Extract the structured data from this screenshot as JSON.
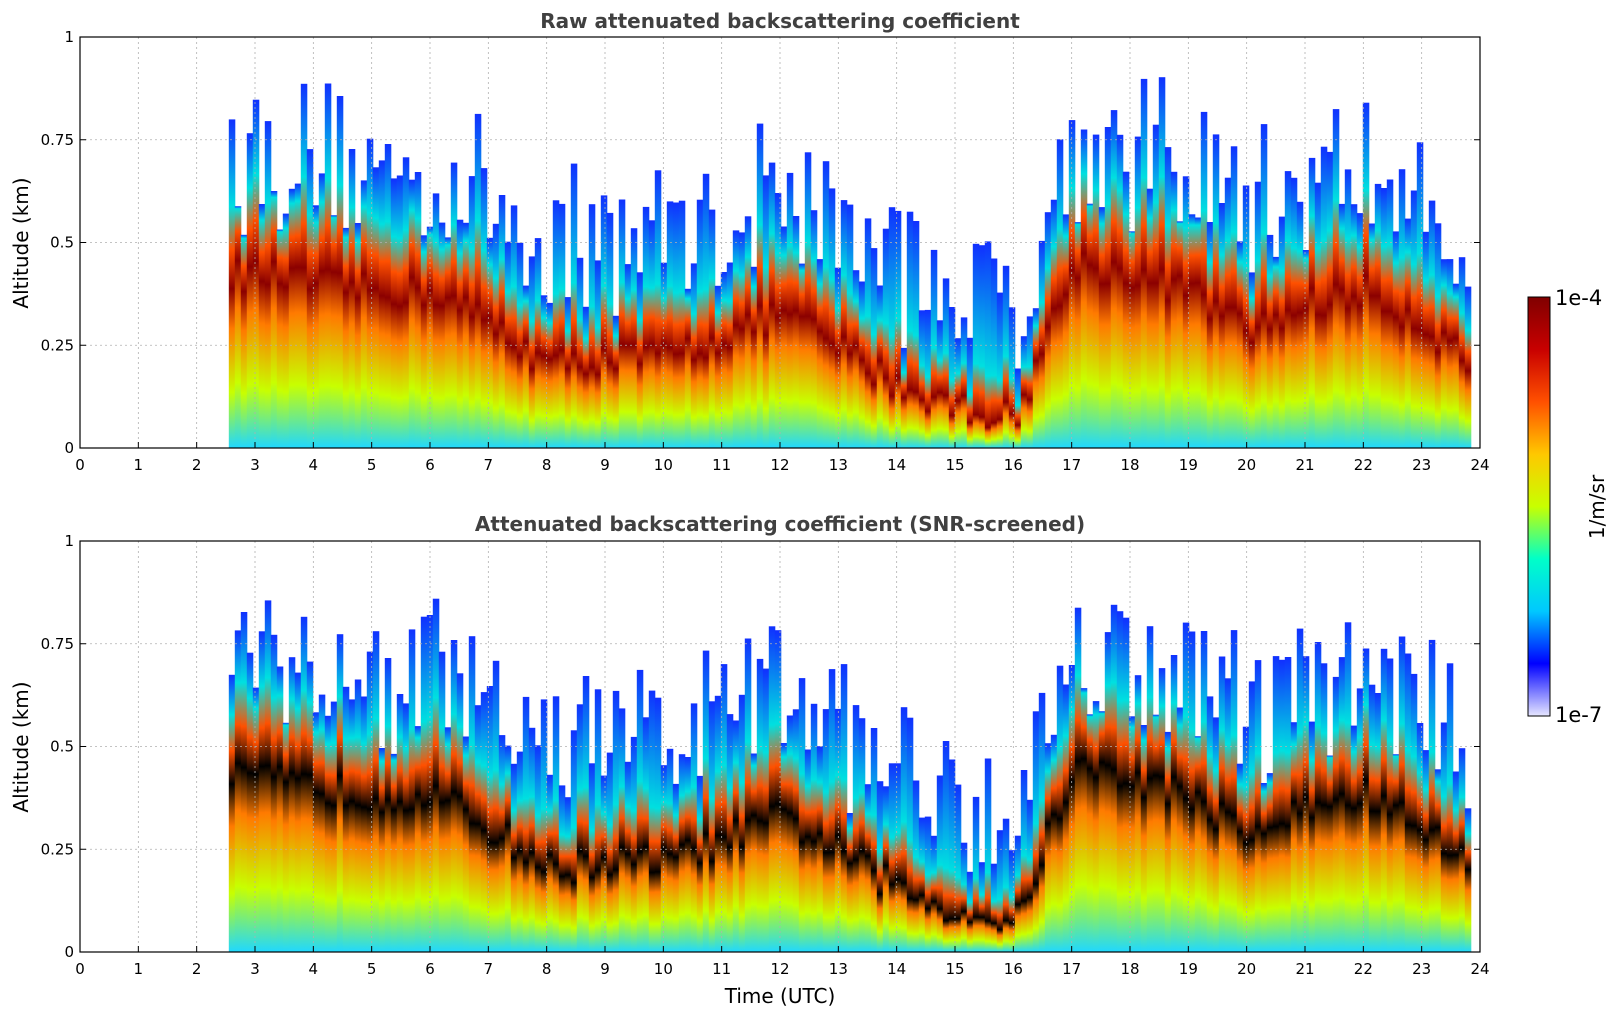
{
  "chart_data": [
    {
      "type": "heatmap",
      "title": "Raw attenuated backscattering coefficient",
      "xlabel": "",
      "ylabel": "Altitude (km)",
      "xlim": [
        0,
        24
      ],
      "ylim": [
        0,
        1
      ],
      "xticks": [
        "0",
        "1",
        "2",
        "3",
        "4",
        "5",
        "6",
        "7",
        "8",
        "9",
        "10",
        "11",
        "12",
        "13",
        "14",
        "15",
        "16",
        "17",
        "18",
        "19",
        "20",
        "21",
        "22",
        "23",
        "24"
      ],
      "yticks": [
        "0",
        "0.25",
        "0.5",
        "0.75",
        "1"
      ],
      "grid": true,
      "screened": false,
      "data_start_hour": 2.55,
      "data_end_hour": 23.8,
      "layer_altitude_km": [
        [
          3,
          0.42
        ],
        [
          4,
          0.4
        ],
        [
          5,
          0.38
        ],
        [
          6,
          0.38
        ],
        [
          7,
          0.3
        ],
        [
          8,
          0.2
        ],
        [
          9,
          0.22
        ],
        [
          10,
          0.22
        ],
        [
          11,
          0.27
        ],
        [
          12,
          0.33
        ],
        [
          13,
          0.24
        ],
        [
          14,
          0.15
        ],
        [
          15,
          0.1
        ],
        [
          16,
          0.07
        ],
        [
          17,
          0.45
        ],
        [
          18,
          0.42
        ],
        [
          19,
          0.38
        ],
        [
          20,
          0.28
        ],
        [
          21,
          0.35
        ],
        [
          22,
          0.38
        ],
        [
          23,
          0.3
        ],
        [
          23.8,
          0.2
        ]
      ]
    },
    {
      "type": "heatmap",
      "title": "Attenuated backscattering coefficient (SNR-screened)",
      "xlabel": "Time (UTC)",
      "ylabel": "Altitude (km)",
      "xlim": [
        0,
        24
      ],
      "ylim": [
        0,
        1
      ],
      "xticks": [
        "0",
        "1",
        "2",
        "3",
        "4",
        "5",
        "6",
        "7",
        "8",
        "9",
        "10",
        "11",
        "12",
        "13",
        "14",
        "15",
        "16",
        "17",
        "18",
        "19",
        "20",
        "21",
        "22",
        "23",
        "24"
      ],
      "yticks": [
        "0",
        "0.25",
        "0.5",
        "0.75",
        "1"
      ],
      "grid": true,
      "screened": true,
      "data_start_hour": 2.55,
      "data_end_hour": 23.8
    }
  ],
  "colorbar": {
    "label": "1/m/sr",
    "max_label": "1e-4",
    "min_label": "1e-7",
    "colors": [
      "#e6e6ff",
      "#0000ff",
      "#00c8ff",
      "#00ffc8",
      "#c8ff00",
      "#ffc800",
      "#ff5000",
      "#c80000",
      "#800000"
    ]
  }
}
